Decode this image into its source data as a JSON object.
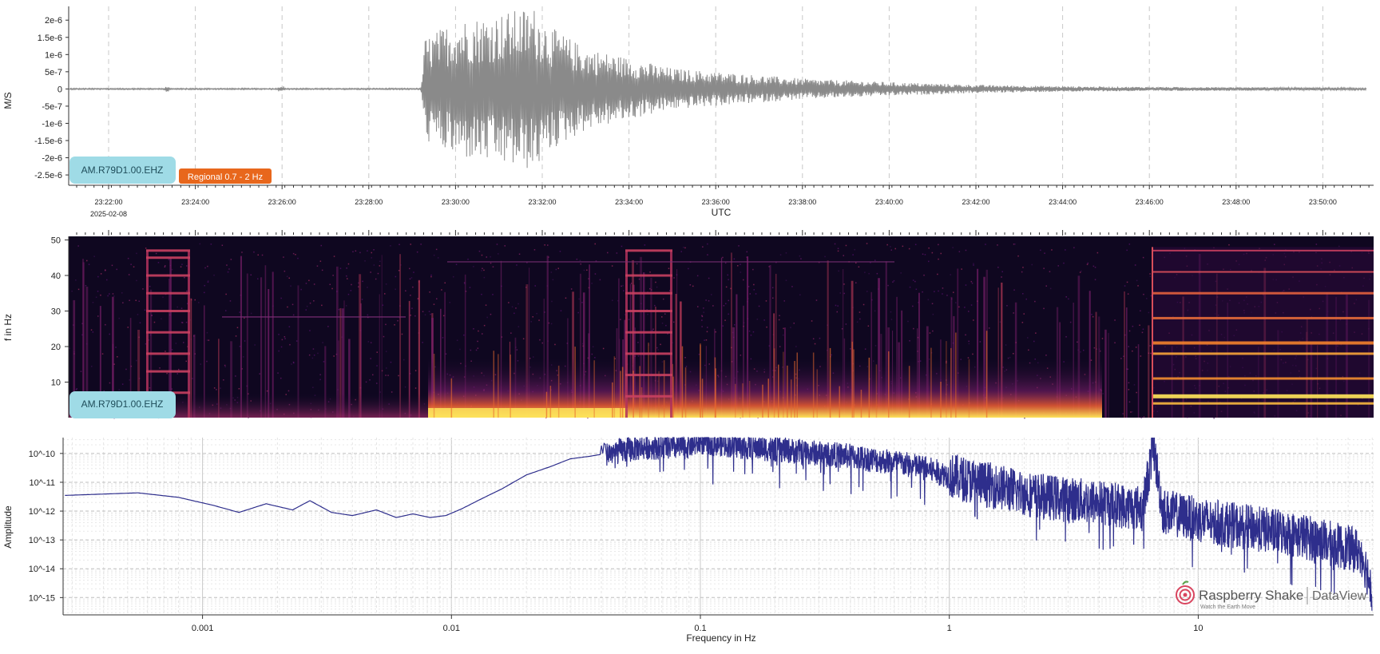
{
  "chart_data": [
    {
      "type": "line",
      "panel": "waveform",
      "ylabel": "M/S",
      "xlabel": "UTC",
      "date_label": "2025-02-08",
      "x_ticks": [
        "23:22:00",
        "23:24:00",
        "23:26:00",
        "23:28:00",
        "23:30:00",
        "23:32:00",
        "23:34:00",
        "23:36:00",
        "23:38:00",
        "23:40:00",
        "23:42:00",
        "23:44:00",
        "23:46:00",
        "23:48:00",
        "23:50:00"
      ],
      "y_ticks": [
        "2e-6",
        "1.5e-6",
        "1e-6",
        "5e-7",
        "0",
        "-5e-7",
        "-1e-6",
        "-1.5e-6",
        "-2e-6",
        "-2.5e-6"
      ],
      "y_values": [
        2e-06,
        1.5e-06,
        1e-06,
        5e-07,
        0,
        -5e-07,
        -1e-06,
        -1.5e-06,
        -2e-06,
        -2.5e-06
      ],
      "ylim": [
        -2.8e-06,
        2.4e-06
      ],
      "x_range": [
        "23:21:07",
        "23:51:07"
      ],
      "station_label": "AM.R79D1.00.EHZ",
      "filter_label": "Regional 0.7 - 2 Hz",
      "envelope": {
        "x_minutes_after_2320": [
          1.1,
          9.2,
          9.3,
          10.0,
          11.0,
          11.8,
          12.2,
          13.0,
          14.0,
          15.0,
          16.0,
          17.0,
          18.0,
          19.0,
          20.0,
          22.0,
          24.0,
          26.0,
          28.0,
          30.0,
          31.0
        ],
        "amplitude": [
          2e-08,
          2e-08,
          1.5e-06,
          2e-06,
          2.2e-06,
          2.4e-06,
          1.8e-06,
          1.2e-06,
          9e-07,
          6e-07,
          5e-07,
          4e-07,
          3e-07,
          2.5e-07,
          2e-07,
          1.2e-07,
          8e-08,
          6e-08,
          5e-08,
          4e-08,
          3e-08
        ]
      },
      "color": "#8a8a8a"
    },
    {
      "type": "heatmap",
      "panel": "spectrogram",
      "ylabel": "f in Hz",
      "y_ticks": [
        "50",
        "40",
        "30",
        "20",
        "10"
      ],
      "y_values": [
        50,
        40,
        30,
        20,
        10
      ],
      "ylim": [
        0,
        51
      ],
      "station_label": "AM.R79D1.00.EHZ",
      "colormap": "inferno"
    },
    {
      "type": "line",
      "panel": "spectrum",
      "ylabel": "Amplitude",
      "xlabel": "Frequency in Hz",
      "x_scale": "log",
      "y_scale": "log",
      "x_ticks": [
        "0.001",
        "0.01",
        "0.1",
        "1",
        "10"
      ],
      "x_tick_values": [
        0.001,
        0.01,
        0.1,
        1,
        10
      ],
      "y_ticks": [
        "10^-10",
        "10^-11",
        "10^-12",
        "10^-13",
        "10^-14",
        "10^-15"
      ],
      "y_tick_exponents": [
        -10,
        -11,
        -12,
        -13,
        -14,
        -15
      ],
      "x": [
        0.00028,
        0.00055,
        0.0008,
        0.0011,
        0.0014,
        0.0018,
        0.0023,
        0.0027,
        0.0033,
        0.004,
        0.005,
        0.006,
        0.007,
        0.0082,
        0.0095,
        0.011,
        0.013,
        0.016,
        0.02,
        0.025,
        0.03,
        0.036,
        0.042,
        0.05,
        0.06,
        0.07,
        0.085,
        0.1,
        0.12,
        0.15,
        0.2,
        0.3,
        0.4,
        0.5,
        0.6,
        0.8,
        1.0,
        1.3,
        1.7,
        2.2,
        3.0,
        4.0,
        5.0,
        6.0,
        6.6,
        7.2,
        8.5,
        10,
        13,
        17,
        22,
        28,
        35,
        45,
        50
      ],
      "y": [
        3.5e-12,
        4.3e-12,
        3e-12,
        1.6e-12,
        9e-13,
        1.8e-12,
        1.1e-12,
        2.3e-12,
        9e-13,
        7e-13,
        1.1e-12,
        6e-13,
        8e-13,
        6e-13,
        7e-13,
        1.2e-12,
        2.5e-12,
        6e-12,
        1.8e-11,
        3.5e-11,
        6.5e-11,
        8e-11,
        1e-10,
        1.3e-10,
        1.7e-10,
        1.7e-10,
        1.6e-10,
        2.5e-10,
        2.2e-10,
        1.7e-10,
        1.4e-10,
        1e-10,
        8e-11,
        6e-11,
        5e-11,
        3e-11,
        1.7e-11,
        1e-11,
        6e-12,
        3.5e-12,
        2.5e-12,
        2e-12,
        1.5e-12,
        1.3e-12,
        2e-10,
        1e-12,
        7e-13,
        5e-13,
        3.5e-13,
        2.5e-13,
        1.8e-13,
        1.2e-13,
        7e-14,
        4e-14,
        2e-15
      ],
      "ylim_exponents": [
        -15.6,
        -9.45
      ],
      "xlim": [
        0.00028,
        50
      ],
      "color": "#2e2e8c"
    }
  ],
  "logo": {
    "name": "Raspberry Shake",
    "tagline": "Watch the Earth Move",
    "product": "DataView",
    "icon": "raspberry-shake-logo-icon",
    "colors": {
      "brand": "#d9455f",
      "text": "#555555"
    }
  },
  "colors": {
    "station_badge": "#9fdbe6",
    "filter_badge": "#e8671c",
    "waveform": "#8a8a8a",
    "spectrum": "#2e2e8c"
  }
}
